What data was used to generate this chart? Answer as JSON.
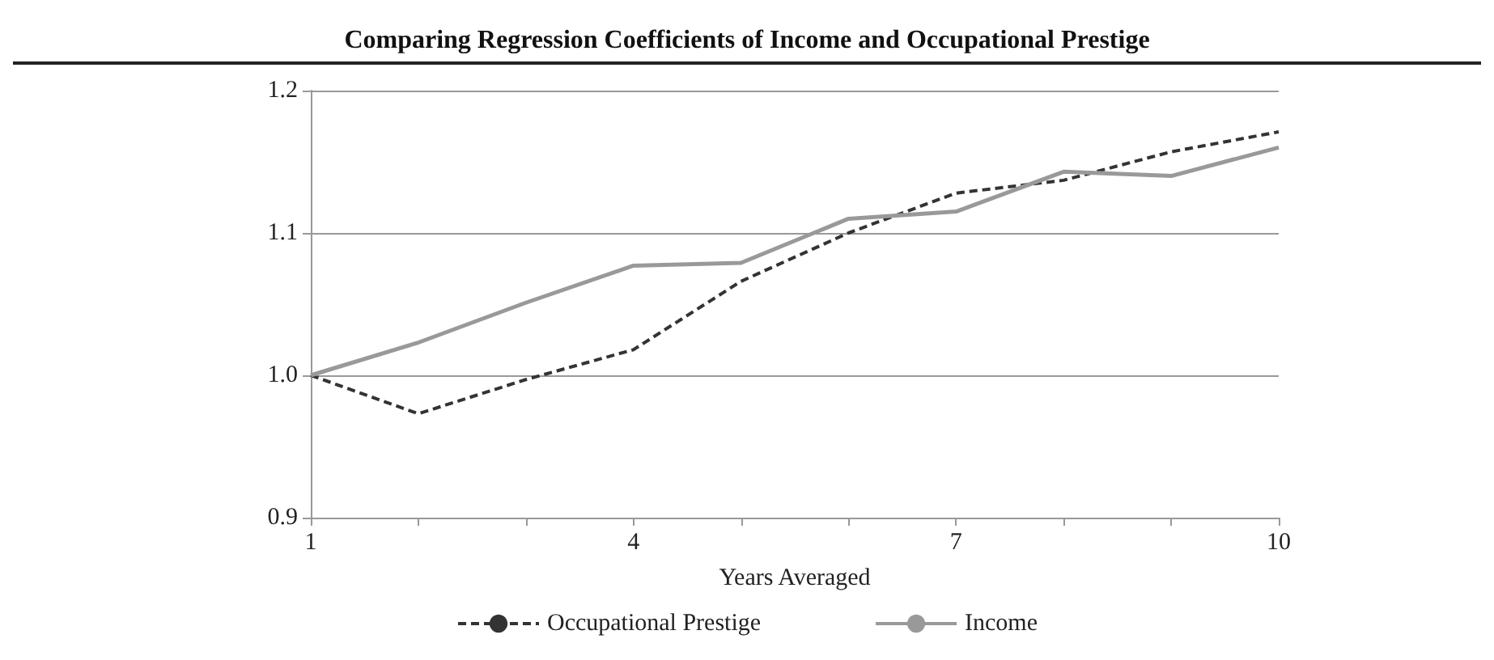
{
  "chart_data": {
    "type": "line",
    "title": "Comparing Regression Coefficients of Income and Occupational Prestige",
    "xlabel": "Years Averaged",
    "categories": [
      "1",
      null,
      null,
      "4",
      null,
      null,
      "7",
      null,
      null,
      "10"
    ],
    "series": [
      {
        "name": "Occupational Prestige",
        "color": "#333333",
        "line_style": "dashed",
        "values": [
          1.0,
          0.973,
          0.997,
          1.018,
          1.066,
          1.1,
          1.128,
          1.137,
          1.157,
          1.171
        ]
      },
      {
        "name": "Income",
        "color": "#999999",
        "line_style": "solid",
        "values": [
          1.0,
          1.023,
          1.051,
          1.077,
          1.079,
          1.11,
          1.115,
          1.143,
          1.14,
          1.16
        ]
      }
    ],
    "ylim": [
      0.9,
      1.2
    ],
    "yticks": [
      {
        "value": 0.9,
        "label": "0.9"
      },
      {
        "value": 1.0,
        "label": "1.0"
      },
      {
        "value": 1.1,
        "label": "1.1"
      },
      {
        "value": 1.2,
        "label": "1.2"
      }
    ],
    "grid": "y",
    "legend": "bottom",
    "marker": "none"
  }
}
